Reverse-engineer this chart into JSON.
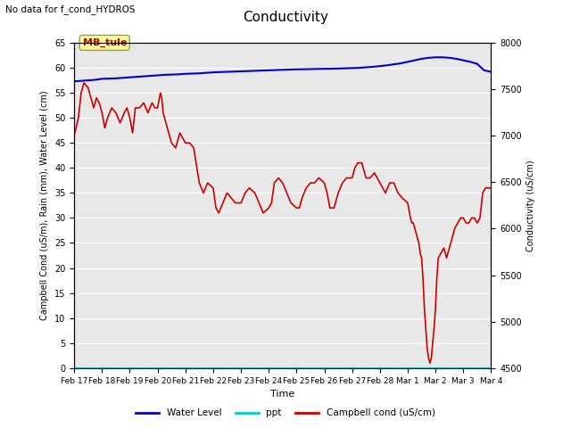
{
  "title": "Conductivity",
  "subtitle": "No data for f_cond_HYDROS",
  "ylabel_left": "Campbell Cond (uS/m), Rain (mm), Water Level (cm)",
  "ylabel_right": "Conductivity (uS/cm)",
  "xlabel": "Time",
  "ylim_left": [
    0,
    65
  ],
  "ylim_right": [
    4500,
    8000
  ],
  "yticks_left": [
    0,
    5,
    10,
    15,
    20,
    25,
    30,
    35,
    40,
    45,
    50,
    55,
    60,
    65
  ],
  "yticks_right": [
    4500,
    5000,
    5500,
    6000,
    6500,
    7000,
    7500,
    8000
  ],
  "xtick_labels": [
    "Feb 17",
    "Feb 18",
    "Feb 19",
    "Feb 20",
    "Feb 21",
    "Feb 22",
    "Feb 23",
    "Feb 24",
    "Feb 25",
    "Feb 26",
    "Feb 27",
    "Feb 28",
    "Mar 1",
    "Mar 2",
    "Mar 3",
    "Mar 4"
  ],
  "bg_color": "#e8e8e8",
  "annotation_box": {
    "text": "MB_tule",
    "text_color": "#cc0000",
    "bg_color": "#ffff99",
    "border_color": "#999966"
  },
  "water_level": {
    "x": [
      0,
      0.25,
      0.5,
      0.75,
      1.0,
      1.25,
      1.5,
      1.75,
      2.0,
      2.25,
      2.5,
      2.75,
      3.0,
      3.25,
      3.5,
      3.75,
      4.0,
      4.25,
      4.5,
      4.75,
      5.0,
      5.25,
      5.5,
      5.75,
      6.0,
      6.25,
      6.5,
      6.75,
      7.0,
      7.25,
      7.5,
      7.75,
      8.0,
      8.25,
      8.5,
      8.75,
      9.0,
      9.25,
      9.5,
      9.75,
      10.0,
      10.25,
      10.5,
      10.75,
      11.0,
      11.25,
      11.5,
      11.75,
      12.0,
      12.25,
      12.5,
      12.75,
      13.0,
      13.25,
      13.5,
      13.75,
      14.0,
      14.25,
      14.5,
      14.75,
      15.0
    ],
    "y": [
      57.3,
      57.4,
      57.5,
      57.6,
      57.8,
      57.85,
      57.9,
      58.0,
      58.1,
      58.2,
      58.3,
      58.4,
      58.5,
      58.6,
      58.65,
      58.7,
      58.8,
      58.85,
      58.9,
      59.0,
      59.1,
      59.15,
      59.2,
      59.25,
      59.3,
      59.35,
      59.4,
      59.45,
      59.5,
      59.55,
      59.6,
      59.65,
      59.7,
      59.72,
      59.75,
      59.78,
      59.8,
      59.82,
      59.85,
      59.9,
      59.95,
      60.0,
      60.1,
      60.2,
      60.35,
      60.5,
      60.7,
      60.9,
      61.2,
      61.5,
      61.8,
      62.0,
      62.1,
      62.1,
      62.0,
      61.8,
      61.5,
      61.2,
      60.8,
      59.5,
      59.2
    ],
    "color": "#0000cc",
    "linewidth": 1.5
  },
  "ppt": {
    "x": [
      0,
      15
    ],
    "y": [
      0,
      0
    ],
    "color": "#00cccc",
    "linewidth": 1.5
  },
  "campbell_cond": {
    "x": [
      0.0,
      0.15,
      0.25,
      0.35,
      0.5,
      0.6,
      0.7,
      0.8,
      0.9,
      1.0,
      1.1,
      1.2,
      1.35,
      1.5,
      1.65,
      1.8,
      1.9,
      2.0,
      2.1,
      2.2,
      2.35,
      2.5,
      2.65,
      2.8,
      2.9,
      3.0,
      3.1,
      3.15,
      3.2,
      3.35,
      3.5,
      3.65,
      3.8,
      4.0,
      4.15,
      4.3,
      4.5,
      4.65,
      4.8,
      5.0,
      5.1,
      5.2,
      5.35,
      5.5,
      5.65,
      5.8,
      6.0,
      6.15,
      6.3,
      6.5,
      6.65,
      6.8,
      7.0,
      7.1,
      7.2,
      7.35,
      7.5,
      7.65,
      7.8,
      8.0,
      8.1,
      8.2,
      8.35,
      8.5,
      8.65,
      8.8,
      9.0,
      9.1,
      9.2,
      9.35,
      9.5,
      9.65,
      9.8,
      10.0,
      10.1,
      10.2,
      10.35,
      10.5,
      10.65,
      10.8,
      11.0,
      11.1,
      11.2,
      11.35,
      11.5,
      11.65,
      11.8,
      12.0,
      12.1,
      12.15,
      12.2,
      12.25,
      12.3,
      12.35,
      12.4,
      12.45,
      12.5,
      12.55,
      12.6,
      12.65,
      12.7,
      12.75,
      12.8,
      12.85,
      12.9,
      12.95,
      13.0,
      13.05,
      13.1,
      13.2,
      13.3,
      13.4,
      13.5,
      13.6,
      13.7,
      13.8,
      13.9,
      14.0,
      14.1,
      14.2,
      14.3,
      14.4,
      14.5,
      14.6,
      14.7,
      14.8,
      14.9,
      15.0
    ],
    "y": [
      46.5,
      50,
      55,
      57,
      56,
      54,
      52,
      54,
      53,
      51,
      48,
      50,
      52,
      51,
      49,
      51,
      52,
      50,
      47,
      52,
      52,
      53,
      51,
      53,
      52,
      52,
      55,
      54,
      51,
      48,
      45,
      44,
      47,
      45,
      45,
      44,
      37,
      35,
      37,
      36,
      32,
      31,
      33,
      35,
      34,
      33,
      33,
      35,
      36,
      35,
      33,
      31,
      32,
      33,
      37,
      38,
      37,
      35,
      33,
      32,
      32,
      34,
      36,
      37,
      37,
      38,
      37,
      35,
      32,
      32,
      35,
      37,
      38,
      38,
      40,
      41,
      41,
      38,
      38,
      39,
      37,
      36,
      35,
      37,
      37,
      35,
      34,
      33,
      30,
      29,
      29,
      28,
      27,
      26,
      25,
      23,
      22,
      18,
      12,
      8,
      4,
      2,
      1,
      2,
      5,
      8,
      12,
      18,
      22,
      23,
      24,
      22,
      24,
      26,
      28,
      29,
      30,
      30,
      29,
      29,
      30,
      30,
      29,
      30,
      35,
      36,
      36,
      36
    ],
    "color": "#cc0000",
    "linewidth": 1.2
  }
}
